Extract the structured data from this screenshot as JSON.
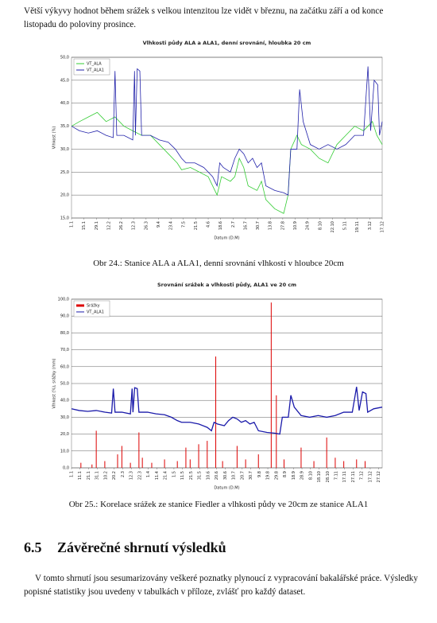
{
  "text_before": "Větší výkyvy hodnot během srážek s velkou intenzitou lze vidět v březnu, na začátku září a od konce listopadu do poloviny prosince.",
  "chart_data": [
    {
      "type": "line",
      "title": "Vlhkosti půdy ALA a ALA1, denní srovnání, hloubka 20 cm",
      "x_label": "Datum (D.M)",
      "y_label": "Vlhkost (%)",
      "legend": "top-left",
      "grid": true,
      "xlim": [
        1,
        351
      ],
      "ylim": [
        15,
        50
      ],
      "xticks": [
        {
          "value": 1,
          "label": "1.1"
        },
        {
          "value": 15,
          "label": "15.1"
        },
        {
          "value": 29,
          "label": "29.1"
        },
        {
          "value": 43,
          "label": "12.2"
        },
        {
          "value": 57,
          "label": "26.2"
        },
        {
          "value": 71,
          "label": "12.3"
        },
        {
          "value": 85,
          "label": "26.3"
        },
        {
          "value": 99,
          "label": "9.4"
        },
        {
          "value": 113,
          "label": "23.4"
        },
        {
          "value": 127,
          "label": "7.5"
        },
        {
          "value": 141,
          "label": "21.5"
        },
        {
          "value": 155,
          "label": "4.6"
        },
        {
          "value": 169,
          "label": "18.6"
        },
        {
          "value": 183,
          "label": "2.7"
        },
        {
          "value": 197,
          "label": "16.7"
        },
        {
          "value": 211,
          "label": "30.7"
        },
        {
          "value": 225,
          "label": "13.8"
        },
        {
          "value": 239,
          "label": "27.8"
        },
        {
          "value": 253,
          "label": "10.9"
        },
        {
          "value": 267,
          "label": "24.9"
        },
        {
          "value": 281,
          "label": "8.10"
        },
        {
          "value": 295,
          "label": "22.10"
        },
        {
          "value": 309,
          "label": "5.11"
        },
        {
          "value": 323,
          "label": "19.11"
        },
        {
          "value": 337,
          "label": "3.12"
        },
        {
          "value": 351,
          "label": "17.12"
        }
      ],
      "yticks": [
        {
          "value": 15,
          "label": "15,0"
        },
        {
          "value": 20,
          "label": "20,0"
        },
        {
          "value": 25,
          "label": "25,0"
        },
        {
          "value": 30,
          "label": "30,0"
        },
        {
          "value": 35,
          "label": "35,0"
        },
        {
          "value": 40,
          "label": "40,0"
        },
        {
          "value": 45,
          "label": "45,0"
        },
        {
          "value": 50,
          "label": "50,0"
        }
      ],
      "series": [
        {
          "name": "VT_ALA",
          "color": "#33cc33",
          "type": "line",
          "x": [
            1,
            10,
            20,
            30,
            40,
            50,
            60,
            70,
            80,
            90,
            100,
            110,
            120,
            125,
            135,
            145,
            155,
            160,
            165,
            170,
            180,
            185,
            190,
            195,
            200,
            210,
            215,
            220,
            230,
            240,
            245,
            248,
            255,
            260,
            270,
            280,
            290,
            300,
            310,
            320,
            330,
            340,
            345,
            351
          ],
          "values": [
            35,
            36,
            37,
            38,
            36,
            37,
            35,
            34,
            33,
            33,
            31,
            29,
            27,
            25.5,
            26,
            25,
            24,
            22,
            20,
            24,
            23,
            24,
            28,
            26,
            22,
            21,
            23,
            19,
            17,
            16,
            20,
            30,
            33,
            31,
            30,
            28,
            27,
            31,
            33,
            35,
            34,
            36,
            33,
            31
          ]
        },
        {
          "name": "VT_ALA1",
          "color": "#2222aa",
          "type": "line",
          "x": [
            1,
            10,
            20,
            30,
            40,
            48,
            50,
            52,
            60,
            70,
            72,
            73,
            75,
            78,
            80,
            90,
            100,
            110,
            118,
            125,
            130,
            140,
            150,
            160,
            165,
            168,
            172,
            180,
            185,
            190,
            195,
            200,
            205,
            210,
            215,
            220,
            230,
            240,
            245,
            248,
            255,
            258,
            262,
            270,
            280,
            290,
            300,
            310,
            320,
            330,
            335,
            338,
            342,
            346,
            348,
            351
          ],
          "values": [
            35,
            34,
            33.5,
            34,
            33,
            32.5,
            47,
            33,
            33,
            32,
            47,
            33,
            47.5,
            47,
            33,
            33,
            32,
            31.5,
            30,
            28,
            27,
            27,
            26,
            24,
            22,
            27,
            26,
            25,
            28,
            30,
            29,
            27,
            28,
            26,
            27,
            22,
            21,
            20.5,
            20,
            30,
            30,
            43,
            36,
            31,
            30,
            31,
            30,
            31,
            33,
            33,
            48,
            34,
            45,
            44,
            33,
            36
          ]
        }
      ]
    },
    {
      "type": "combo",
      "title": "Srovnání srážek a vlhkosti půdy, ALA1 ve 20 cm",
      "x_label": "Datum (D.M)",
      "y_label": "Vlhkost (%), srážky (mm)",
      "legend": "top-left",
      "grid": true,
      "xlim": [
        1,
        365
      ],
      "ylim": [
        0,
        100
      ],
      "xticks": [
        {
          "value": 1,
          "label": "1.1"
        },
        {
          "value": 11,
          "label": "11.1"
        },
        {
          "value": 21,
          "label": "21.1"
        },
        {
          "value": 31,
          "label": "31.1"
        },
        {
          "value": 41,
          "label": "10.2"
        },
        {
          "value": 51,
          "label": "20.2"
        },
        {
          "value": 61,
          "label": "2.3"
        },
        {
          "value": 71,
          "label": "12.3"
        },
        {
          "value": 81,
          "label": "22.3"
        },
        {
          "value": 91,
          "label": "1.4"
        },
        {
          "value": 101,
          "label": "11.4"
        },
        {
          "value": 111,
          "label": "21.4"
        },
        {
          "value": 121,
          "label": "1.5"
        },
        {
          "value": 131,
          "label": "11.5"
        },
        {
          "value": 141,
          "label": "21.5"
        },
        {
          "value": 151,
          "label": "31.5"
        },
        {
          "value": 161,
          "label": "10.6"
        },
        {
          "value": 171,
          "label": "20.6"
        },
        {
          "value": 181,
          "label": "30.6"
        },
        {
          "value": 191,
          "label": "10.7"
        },
        {
          "value": 201,
          "label": "20.7"
        },
        {
          "value": 211,
          "label": "30.7"
        },
        {
          "value": 221,
          "label": "9.8"
        },
        {
          "value": 231,
          "label": "19.8"
        },
        {
          "value": 241,
          "label": "29.8"
        },
        {
          "value": 251,
          "label": "8.9"
        },
        {
          "value": 261,
          "label": "18.9"
        },
        {
          "value": 271,
          "label": "28.9"
        },
        {
          "value": 281,
          "label": "8.10"
        },
        {
          "value": 291,
          "label": "18.10"
        },
        {
          "value": 301,
          "label": "28.10"
        },
        {
          "value": 311,
          "label": "7.11"
        },
        {
          "value": 321,
          "label": "17.11"
        },
        {
          "value": 331,
          "label": "27.11"
        },
        {
          "value": 341,
          "label": "7.12"
        },
        {
          "value": 351,
          "label": "17.12"
        },
        {
          "value": 361,
          "label": "27.12"
        }
      ],
      "yticks": [
        {
          "value": 0,
          "label": "0,0"
        },
        {
          "value": 10,
          "label": "10,0"
        },
        {
          "value": 20,
          "label": "20,0"
        },
        {
          "value": 30,
          "label": "30,0"
        },
        {
          "value": 40,
          "label": "40,0"
        },
        {
          "value": 50,
          "label": "50,0"
        },
        {
          "value": 60,
          "label": "60,0"
        },
        {
          "value": 70,
          "label": "70,0"
        },
        {
          "value": 80,
          "label": "80,0"
        },
        {
          "value": 90,
          "label": "90,0"
        },
        {
          "value": 100,
          "label": "100,0"
        }
      ],
      "series": [
        {
          "name": "Srážky",
          "color": "#dd0000",
          "type": "bar",
          "x": [
            12,
            25,
            30,
            40,
            55,
            60,
            70,
            80,
            84,
            95,
            110,
            125,
            135,
            140,
            150,
            160,
            170,
            178,
            195,
            205,
            220,
            235,
            241,
            250,
            270,
            285,
            300,
            310,
            320,
            335,
            345
          ],
          "values": [
            3,
            2,
            22,
            4,
            8,
            13,
            3,
            21,
            6,
            3,
            5,
            4,
            12,
            5,
            14,
            16,
            66,
            4,
            13,
            5,
            8,
            98,
            43,
            5,
            12,
            4,
            18,
            6,
            4,
            5,
            4
          ]
        },
        {
          "name": "VT_ALA1",
          "color": "#1a1aaa",
          "type": "line",
          "x": [
            1,
            10,
            20,
            30,
            40,
            48,
            50,
            52,
            60,
            70,
            72,
            73,
            75,
            78,
            80,
            90,
            100,
            110,
            118,
            125,
            130,
            140,
            150,
            160,
            165,
            168,
            172,
            180,
            185,
            190,
            195,
            200,
            205,
            210,
            215,
            220,
            230,
            240,
            245,
            248,
            255,
            258,
            262,
            270,
            280,
            290,
            300,
            310,
            320,
            330,
            335,
            338,
            342,
            346,
            348,
            355,
            365
          ],
          "values": [
            35,
            34,
            33.5,
            34,
            33,
            32.5,
            47,
            33,
            33,
            32,
            47,
            33,
            47.5,
            47,
            33,
            33,
            32,
            31.5,
            30,
            28,
            27,
            27,
            26,
            24,
            22,
            27,
            26,
            25,
            28,
            30,
            29,
            27,
            28,
            26,
            27,
            22,
            21,
            20.5,
            20,
            30,
            30,
            43,
            36,
            31,
            30,
            31,
            30,
            31,
            33,
            33,
            48,
            34,
            45,
            44,
            33,
            35,
            36
          ]
        }
      ]
    }
  ],
  "captions": [
    "Obr 24.: Stanice ALA a ALA1, denní srovnání vlhkostí v hloubce 20cm",
    "Obr 25.: Korelace srážek ze stanice Fiedler a vlhkosti půdy ve 20cm ze stanice ALA1"
  ],
  "section": {
    "number": "6.5",
    "title": "Závěrečné shrnutí výsledků"
  },
  "paragraph": "V tomto shrnutí jsou sesumarizovány veškeré poznatky plynoucí z vypracování bakalářské práce. Výsledky popisné statistiky jsou uvedeny v tabulkách v příloze, zvlášť pro každý dataset."
}
